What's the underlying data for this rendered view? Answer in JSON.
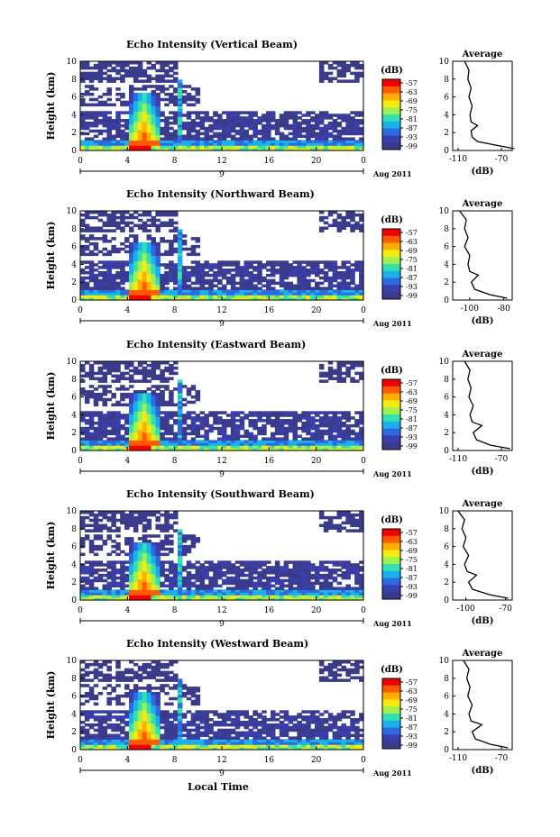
{
  "chart_data": [
    {
      "type": "heatmap",
      "title": "Echo Intensity (Vertical Beam)",
      "ylabel": "Height (km)",
      "x_ticks": [
        "0",
        "4",
        "8",
        "12",
        "16",
        "20",
        "0"
      ],
      "y_ticks": [
        "0",
        "2",
        "4",
        "6",
        "8",
        "10"
      ],
      "ylim": [
        0,
        10
      ],
      "xlim": [
        0,
        24
      ],
      "date_tick": "9",
      "date_label": "Aug 2011",
      "colorbar": {
        "title": "(dB)",
        "ticks": [
          "-57",
          "-63",
          "-69",
          "-75",
          "-81",
          "-87",
          "-93",
          "-99"
        ]
      },
      "average": {
        "title": "Average",
        "xlabel": "(dB)",
        "x_ticks": [
          "-110",
          "-70"
        ],
        "xlim": [
          -115,
          -60
        ],
        "profile": [
          [
            -58,
            0.2
          ],
          [
            -75,
            0.6
          ],
          [
            -92,
            1.0
          ],
          [
            -97,
            1.5
          ],
          [
            -98,
            2.2
          ],
          [
            -92,
            2.8
          ],
          [
            -98,
            3.2
          ],
          [
            -99,
            4.0
          ],
          [
            -97,
            5.0
          ],
          [
            -100,
            6.0
          ],
          [
            -98,
            7.0
          ],
          [
            -101,
            8.0
          ],
          [
            -100,
            9.0
          ],
          [
            -104,
            10.0
          ]
        ]
      }
    },
    {
      "type": "heatmap",
      "title": "Echo Intensity (Northward Beam)",
      "ylabel": "Height (km)",
      "x_ticks": [
        "0",
        "4",
        "8",
        "12",
        "16",
        "20",
        "0"
      ],
      "y_ticks": [
        "0",
        "2",
        "4",
        "6",
        "8",
        "10"
      ],
      "ylim": [
        0,
        10
      ],
      "xlim": [
        0,
        24
      ],
      "date_tick": "9",
      "date_label": "Aug 2011",
      "colorbar": {
        "title": "(dB)",
        "ticks": [
          "-57",
          "-63",
          "-69",
          "-75",
          "-81",
          "-87",
          "-93",
          "-99"
        ]
      },
      "average": {
        "title": "Average",
        "xlabel": "(dB)",
        "x_ticks": [
          "-100",
          "-80"
        ],
        "xlim": [
          -110,
          -75
        ],
        "profile": [
          [
            -78,
            0.2
          ],
          [
            -88,
            0.6
          ],
          [
            -97,
            1.2
          ],
          [
            -99,
            2.0
          ],
          [
            -95,
            2.8
          ],
          [
            -100,
            3.2
          ],
          [
            -101,
            4.0
          ],
          [
            -100,
            5.0
          ],
          [
            -103,
            6.0
          ],
          [
            -101,
            7.0
          ],
          [
            -103,
            8.0
          ],
          [
            -102,
            9.0
          ],
          [
            -106,
            10.0
          ]
        ]
      }
    },
    {
      "type": "heatmap",
      "title": "Echo Intensity (Eastward Beam)",
      "ylabel": "Height (km)",
      "x_ticks": [
        "0",
        "4",
        "8",
        "12",
        "16",
        "20",
        "0"
      ],
      "y_ticks": [
        "0",
        "2",
        "4",
        "6",
        "8",
        "10"
      ],
      "ylim": [
        0,
        10
      ],
      "xlim": [
        0,
        24
      ],
      "date_tick": "9",
      "date_label": "Aug 2011",
      "colorbar": {
        "title": "(dB)",
        "ticks": [
          "-57",
          "-63",
          "-69",
          "-75",
          "-81",
          "-87",
          "-93",
          "-99"
        ]
      },
      "average": {
        "title": "Average",
        "xlabel": "(dB)",
        "x_ticks": [
          "-110",
          "-70"
        ],
        "xlim": [
          -115,
          -60
        ],
        "profile": [
          [
            -62,
            0.2
          ],
          [
            -80,
            0.6
          ],
          [
            -93,
            1.2
          ],
          [
            -96,
            2.0
          ],
          [
            -88,
            2.8
          ],
          [
            -97,
            3.2
          ],
          [
            -99,
            4.0
          ],
          [
            -96,
            5.0
          ],
          [
            -100,
            6.0
          ],
          [
            -98,
            7.0
          ],
          [
            -101,
            8.0
          ],
          [
            -99,
            9.0
          ],
          [
            -104,
            10.0
          ]
        ]
      }
    },
    {
      "type": "heatmap",
      "title": "Echo Intensity (Southward Beam)",
      "ylabel": "Height (km)",
      "x_ticks": [
        "0",
        "4",
        "8",
        "12",
        "16",
        "20",
        "0"
      ],
      "y_ticks": [
        "0",
        "2",
        "4",
        "6",
        "8",
        "10"
      ],
      "ylim": [
        0,
        10
      ],
      "xlim": [
        0,
        24
      ],
      "date_tick": "9",
      "date_label": "Aug 2011",
      "colorbar": {
        "title": "(dB)",
        "ticks": [
          "-57",
          "-63",
          "-69",
          "-75",
          "-81",
          "-87",
          "-93",
          "-99"
        ]
      },
      "average": {
        "title": "Average",
        "xlabel": "(dB)",
        "x_ticks": [
          "-100",
          "-70"
        ],
        "xlim": [
          -110,
          -65
        ],
        "profile": [
          [
            -68,
            0.2
          ],
          [
            -82,
            0.6
          ],
          [
            -95,
            1.2
          ],
          [
            -98,
            2.0
          ],
          [
            -92,
            2.8
          ],
          [
            -99,
            3.2
          ],
          [
            -101,
            4.0
          ],
          [
            -98,
            5.0
          ],
          [
            -102,
            6.0
          ],
          [
            -100,
            7.0
          ],
          [
            -103,
            8.0
          ],
          [
            -101,
            9.0
          ],
          [
            -106,
            10.0
          ]
        ]
      }
    },
    {
      "type": "heatmap",
      "title": "Echo Intensity (Westward Beam)",
      "ylabel": "Height (km)",
      "x_ticks": [
        "0",
        "4",
        "8",
        "12",
        "16",
        "20",
        "0"
      ],
      "y_ticks": [
        "0",
        "2",
        "4",
        "6",
        "8",
        "10"
      ],
      "ylim": [
        0,
        10
      ],
      "xlim": [
        0,
        24
      ],
      "date_tick": "9",
      "date_label": "Aug 2011",
      "colorbar": {
        "title": "(dB)",
        "ticks": [
          "-57",
          "-63",
          "-69",
          "-75",
          "-81",
          "-87",
          "-93",
          "-99"
        ]
      },
      "average": {
        "title": "Average",
        "xlabel": "(dB)",
        "x_ticks": [
          "-110",
          "-70"
        ],
        "xlim": [
          -115,
          -60
        ],
        "profile": [
          [
            -64,
            0.2
          ],
          [
            -80,
            0.6
          ],
          [
            -94,
            1.2
          ],
          [
            -97,
            2.0
          ],
          [
            -88,
            2.8
          ],
          [
            -98,
            3.2
          ],
          [
            -100,
            4.0
          ],
          [
            -97,
            5.0
          ],
          [
            -101,
            6.0
          ],
          [
            -99,
            7.0
          ],
          [
            -102,
            8.0
          ],
          [
            -100,
            9.0
          ],
          [
            -105,
            10.0
          ]
        ]
      }
    }
  ],
  "xlabel": "Local Time"
}
